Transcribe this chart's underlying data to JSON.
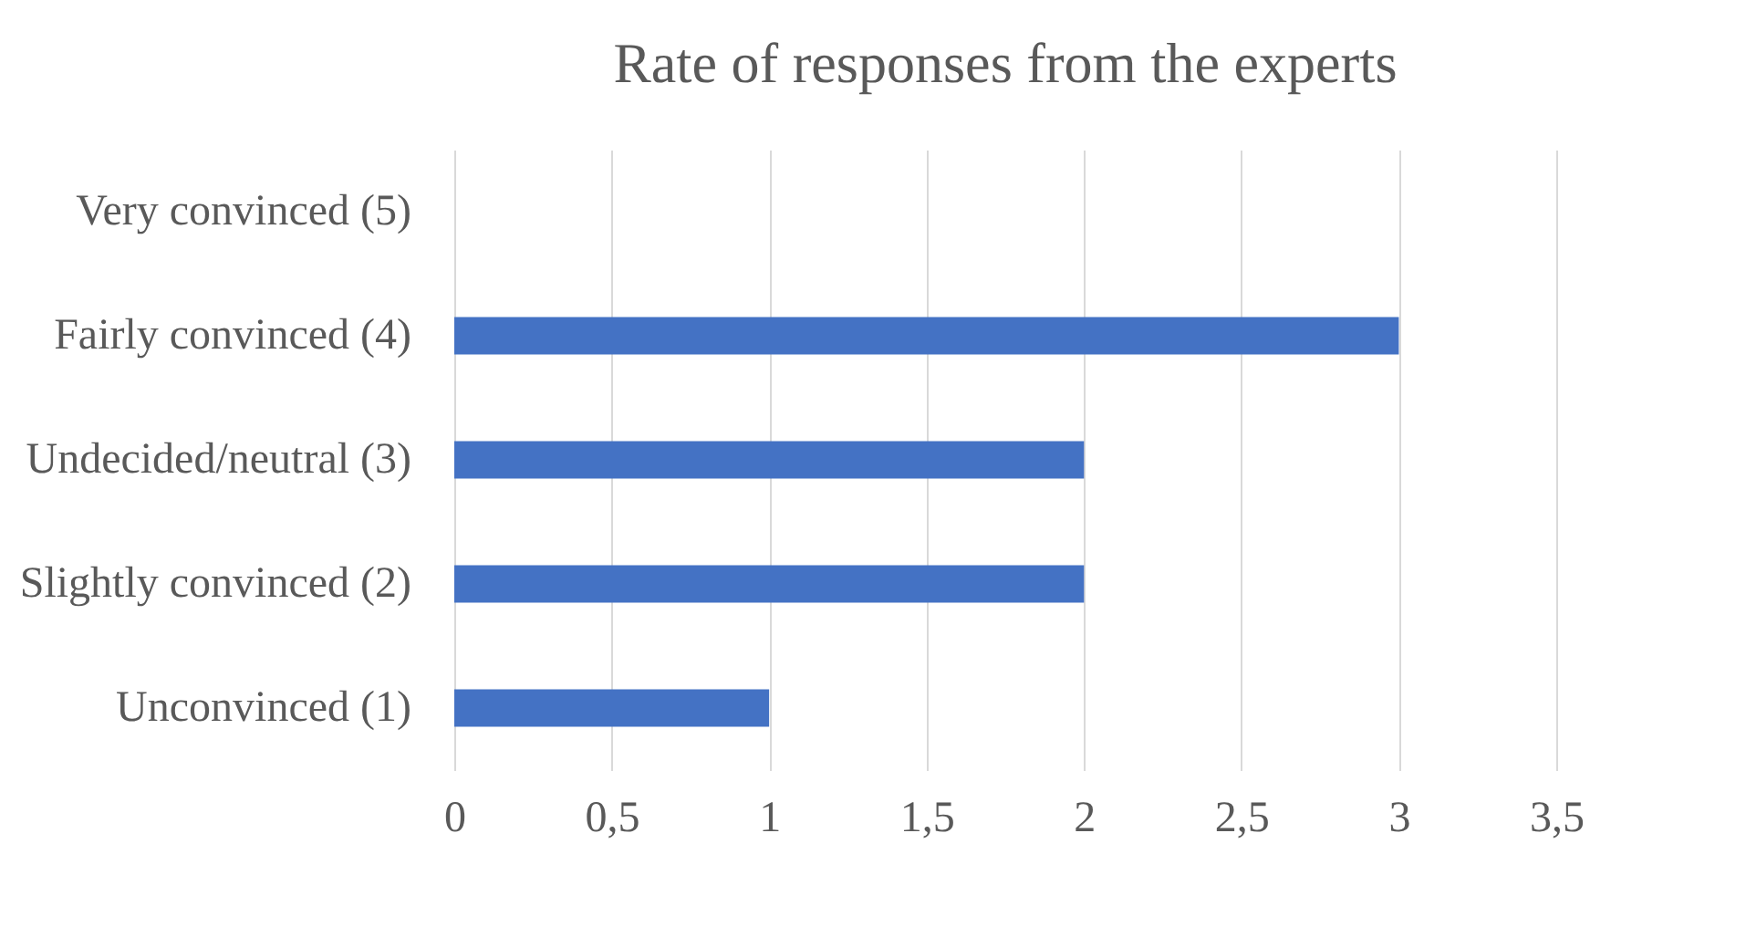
{
  "chart_data": {
    "type": "bar",
    "title": "Rate of responses from the experts",
    "orientation": "horizontal",
    "categories": [
      "Very convinced (5)",
      "Fairly convinced (4)",
      "Undecided/neutral (3)",
      "Slightly convinced (2)",
      "Unconvinced (1)"
    ],
    "values": [
      0,
      3,
      2,
      2,
      1
    ],
    "color": "#4472c4",
    "xlim": [
      0,
      3.5
    ],
    "xticks": [
      0,
      {
        "value": 0.5,
        "label": "0,5"
      },
      1,
      {
        "value": 1.5,
        "label": "1,5"
      },
      2,
      {
        "value": 2.5,
        "label": "2,5"
      },
      3,
      {
        "value": 3.5,
        "label": "3,5"
      }
    ],
    "grid": "x"
  }
}
